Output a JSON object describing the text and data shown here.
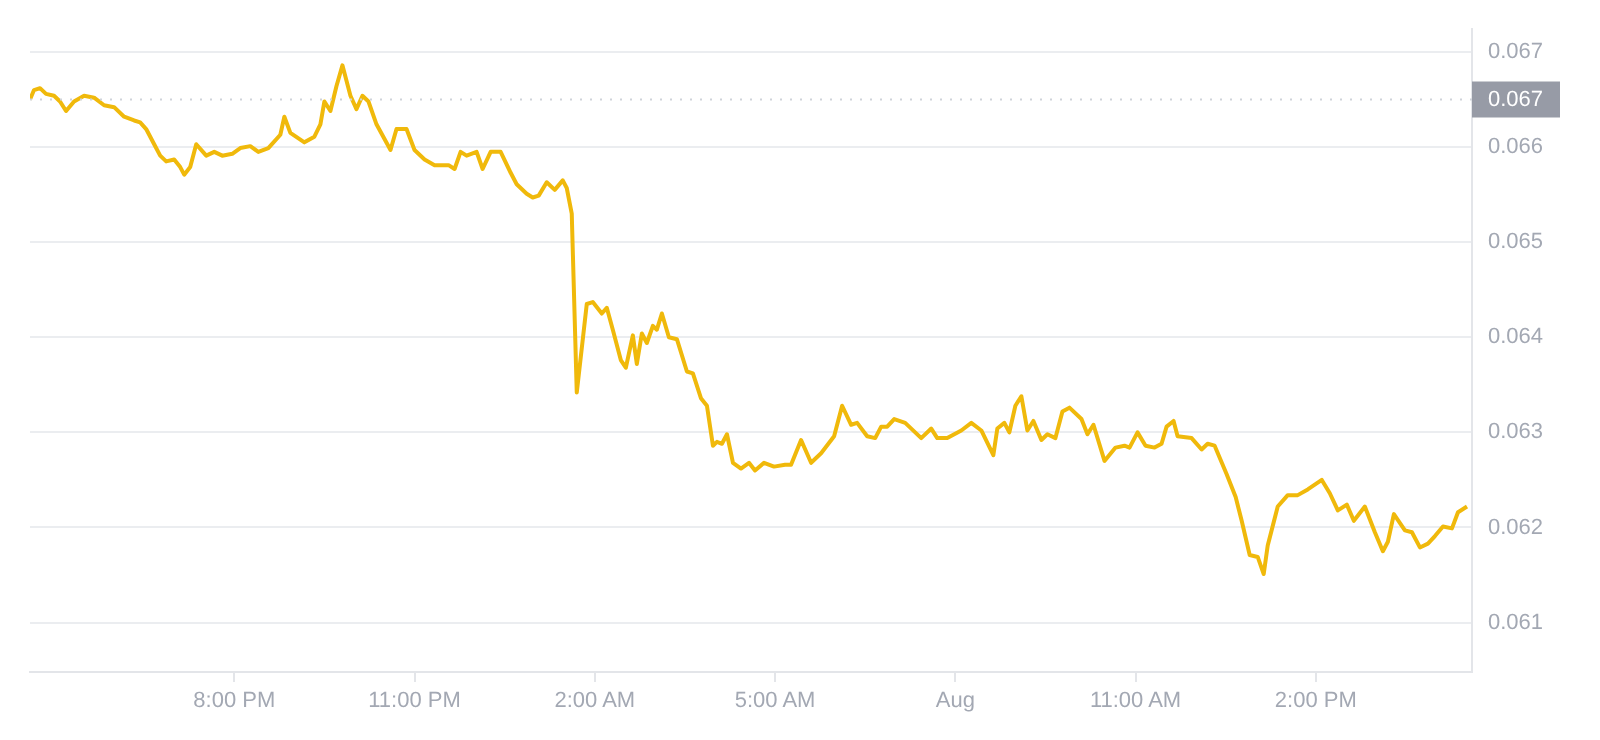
{
  "chart_data": {
    "type": "line",
    "xlim": [
      "--07-31T16:36",
      "--08-01T16:36"
    ],
    "xticks": [
      {
        "value": "--07-31T20:00",
        "label": "8:00 PM"
      },
      {
        "value": "--07-31T23:00",
        "label": "11:00 PM"
      },
      {
        "value": "--08-01T02:00",
        "label": "2:00 AM"
      },
      {
        "value": "--08-01T05:00",
        "label": "5:00 AM"
      },
      {
        "value": "--08-01T08:00",
        "label": "Aug"
      },
      {
        "value": "--08-01T11:00",
        "label": "11:00 AM"
      },
      {
        "value": "--08-01T14:00",
        "label": "2:00 PM"
      }
    ],
    "ylim": [
      0.06048,
      0.06724
    ],
    "yticks": [
      0.061,
      0.062,
      0.063,
      0.064,
      0.065,
      0.066,
      0.067
    ],
    "grid": "y",
    "marker": "none",
    "ref_lines": [
      {
        "axis": "y",
        "value": 0.0665,
        "label": "0.067",
        "color": "#cfd3da",
        "line_style": "dotted"
      }
    ],
    "series": [
      {
        "color": "#f0b90b",
        "x": [
          "--07-31T16:36",
          "--07-31T16:40",
          "--07-31T16:46",
          "--07-31T16:52",
          "--07-31T17:00",
          "--07-31T17:06",
          "--07-31T17:12",
          "--07-31T17:20",
          "--07-31T17:30",
          "--07-31T17:40",
          "--07-31T17:50",
          "--07-31T18:00",
          "--07-31T18:10",
          "--07-31T18:20",
          "--07-31T18:26",
          "--07-31T18:32",
          "--07-31T18:40",
          "--07-31T18:46",
          "--07-31T18:52",
          "--07-31T19:00",
          "--07-31T19:06",
          "--07-31T19:10",
          "--07-31T19:16",
          "--07-31T19:22",
          "--07-31T19:32",
          "--07-31T19:40",
          "--07-31T19:48",
          "--07-31T19:58",
          "--07-31T20:06",
          "--07-31T20:16",
          "--07-31T20:24",
          "--07-31T20:34",
          "--07-31T20:46",
          "--07-31T20:50",
          "--07-31T20:56",
          "--07-31T21:10",
          "--07-31T21:20",
          "--07-31T21:26",
          "--07-31T21:30",
          "--07-31T21:36",
          "--07-31T21:42",
          "--07-31T21:48",
          "--07-31T21:56",
          "--07-31T22:02",
          "--07-31T22:08",
          "--07-31T22:14",
          "--07-31T22:22",
          "--07-31T22:36",
          "--07-31T22:42",
          "--07-31T22:52",
          "--07-31T23:00",
          "--07-31T23:10",
          "--07-31T23:20",
          "--07-31T23:34",
          "--07-31T23:40",
          "--07-31T23:46",
          "--07-31T23:52",
          "--08-01T00:02",
          "--08-01T00:08",
          "--08-01T00:16",
          "--08-01T00:26",
          "--08-01T00:36",
          "--08-01T00:42",
          "--08-01T00:52",
          "--08-01T00:58",
          "--08-01T01:04",
          "--08-01T01:12",
          "--08-01T01:20",
          "--08-01T01:28",
          "--08-01T01:32",
          "--08-01T01:37",
          "--08-01T01:42",
          "--08-01T01:52",
          "--08-01T01:58",
          "--08-01T02:07",
          "--08-01T02:12",
          "--08-01T02:18",
          "--08-01T02:26",
          "--08-01T02:31",
          "--08-01T02:38",
          "--08-01T02:42",
          "--08-01T02:47",
          "--08-01T02:52",
          "--08-01T02:58",
          "--08-01T03:02",
          "--08-01T03:07",
          "--08-01T03:14",
          "--08-01T03:22",
          "--08-01T03:32",
          "--08-01T03:38",
          "--08-01T03:46",
          "--08-01T03:52",
          "--08-01T03:58",
          "--08-01T04:02",
          "--08-01T04:07",
          "--08-01T04:12",
          "--08-01T04:18",
          "--08-01T04:26",
          "--08-01T04:34",
          "--08-01T04:40",
          "--08-01T04:49",
          "--08-01T04:59",
          "--08-01T05:10",
          "--08-01T05:16",
          "--08-01T05:26",
          "--08-01T05:36",
          "--08-01T05:46",
          "--08-01T05:59",
          "--08-01T06:07",
          "--08-01T06:16",
          "--08-01T06:22",
          "--08-01T06:32",
          "--08-01T06:40",
          "--08-01T06:46",
          "--08-01T06:52",
          "--08-01T06:59",
          "--08-01T07:10",
          "--08-01T07:26",
          "--08-01T07:36",
          "--08-01T07:42",
          "--08-01T07:52",
          "--08-01T08:06",
          "--08-01T08:16",
          "--08-01T08:26",
          "--08-01T08:38",
          "--08-01T08:42",
          "--08-01T08:49",
          "--08-01T08:54",
          "--08-01T09:00",
          "--08-01T09:06",
          "--08-01T09:12",
          "--08-01T09:18",
          "--08-01T09:26",
          "--08-01T09:32",
          "--08-01T09:40",
          "--08-01T09:47",
          "--08-01T09:54",
          "--08-01T10:06",
          "--08-01T10:12",
          "--08-01T10:18",
          "--08-01T10:29",
          "--08-01T10:40",
          "--08-01T10:49",
          "--08-01T10:54",
          "--08-01T11:02",
          "--08-01T11:10",
          "--08-01T11:19",
          "--08-01T11:26",
          "--08-01T11:31",
          "--08-01T11:38",
          "--08-01T11:42",
          "--08-01T11:56",
          "--08-01T12:06",
          "--08-01T12:12",
          "--08-01T12:19",
          "--08-01T12:31",
          "--08-01T12:40",
          "--08-01T12:46",
          "--08-01T12:54",
          "--08-01T13:02",
          "--08-01T13:08",
          "--08-01T13:12",
          "--08-01T13:22",
          "--08-01T13:32",
          "--08-01T13:42",
          "--08-01T13:52",
          "--08-01T14:06",
          "--08-01T14:14",
          "--08-01T14:22",
          "--08-01T14:31",
          "--08-01T14:38",
          "--08-01T14:49",
          "--08-01T14:59",
          "--08-01T15:07",
          "--08-01T15:12",
          "--08-01T15:18",
          "--08-01T15:29",
          "--08-01T15:36",
          "--08-01T15:44",
          "--08-01T15:52",
          "--08-01T15:59",
          "--08-01T16:07",
          "--08-01T16:16",
          "--08-01T16:22",
          "--08-01T16:31"
        ],
        "values": [
          0.0665,
          0.0666,
          0.06662,
          0.06656,
          0.06654,
          0.06648,
          0.06638,
          0.06648,
          0.06654,
          0.06652,
          0.06644,
          0.06642,
          0.06632,
          0.06628,
          0.06626,
          0.06619,
          0.06603,
          0.06591,
          0.06585,
          0.06587,
          0.06579,
          0.06571,
          0.06579,
          0.06603,
          0.06591,
          0.06595,
          0.06591,
          0.06593,
          0.06599,
          0.06601,
          0.06595,
          0.06599,
          0.06613,
          0.06632,
          0.06615,
          0.06605,
          0.06611,
          0.06624,
          0.06648,
          0.06638,
          0.06664,
          0.06686,
          0.06654,
          0.0664,
          0.06654,
          0.06648,
          0.06624,
          0.06597,
          0.06619,
          0.06619,
          0.06597,
          0.06587,
          0.06581,
          0.06581,
          0.06577,
          0.06595,
          0.06591,
          0.06595,
          0.06577,
          0.06595,
          0.06595,
          0.06573,
          0.06561,
          0.06551,
          0.06547,
          0.06549,
          0.06563,
          0.06555,
          0.06565,
          0.06557,
          0.0653,
          0.06342,
          0.06435,
          0.06437,
          0.06425,
          0.06431,
          0.06408,
          0.06376,
          0.06368,
          0.06402,
          0.06372,
          0.06404,
          0.06394,
          0.06412,
          0.06408,
          0.06425,
          0.064,
          0.06398,
          0.06364,
          0.06362,
          0.06336,
          0.06328,
          0.06286,
          0.0629,
          0.06288,
          0.06298,
          0.06268,
          0.06262,
          0.06268,
          0.0626,
          0.06268,
          0.06264,
          0.06266,
          0.06266,
          0.06292,
          0.06268,
          0.06278,
          0.06296,
          0.06328,
          0.06308,
          0.0631,
          0.06296,
          0.06294,
          0.06306,
          0.06306,
          0.06314,
          0.0631,
          0.06294,
          0.06304,
          0.06294,
          0.06294,
          0.06302,
          0.0631,
          0.06302,
          0.06276,
          0.06304,
          0.0631,
          0.063,
          0.06328,
          0.06338,
          0.06302,
          0.06312,
          0.06292,
          0.06298,
          0.06294,
          0.06322,
          0.06326,
          0.06314,
          0.06298,
          0.06308,
          0.0627,
          0.06284,
          0.06286,
          0.06284,
          0.063,
          0.06286,
          0.06284,
          0.06288,
          0.06306,
          0.06312,
          0.06296,
          0.06294,
          0.06282,
          0.06288,
          0.06286,
          0.06256,
          0.06232,
          0.06207,
          0.06171,
          0.06169,
          0.06151,
          0.06181,
          0.06222,
          0.06234,
          0.06234,
          0.0624,
          0.0625,
          0.06236,
          0.06218,
          0.06224,
          0.06207,
          0.06222,
          0.06195,
          0.06175,
          0.06185,
          0.06214,
          0.06197,
          0.06195,
          0.06179,
          0.06183,
          0.06191,
          0.06201,
          0.06199,
          0.06216,
          0.06222
        ]
      }
    ]
  }
}
